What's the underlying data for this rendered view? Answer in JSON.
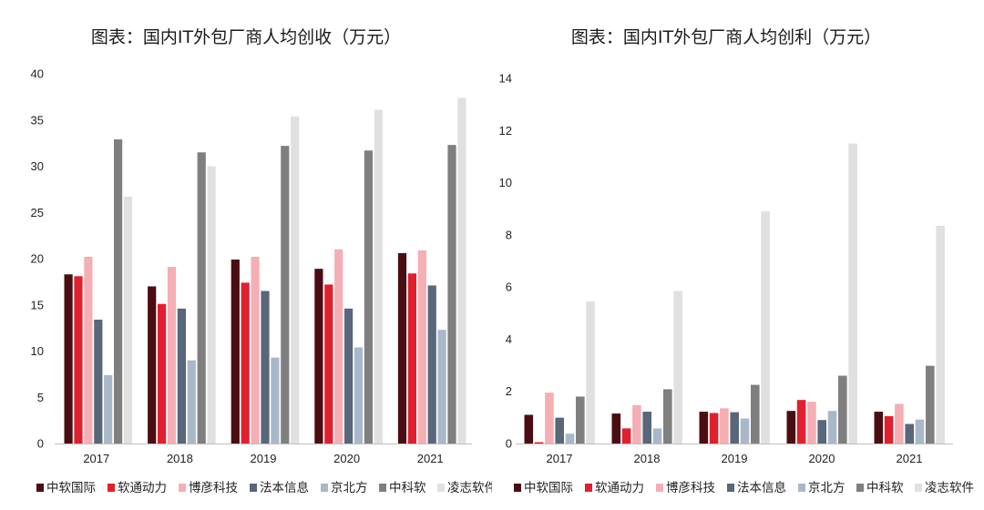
{
  "chart_data": [
    {
      "type": "bar",
      "title": "图表：国内IT外包厂商人均创收（万元）",
      "categories": [
        "2017",
        "2018",
        "2019",
        "2020",
        "2021"
      ],
      "ylim": [
        0,
        40
      ],
      "yticks": [
        "0",
        "5",
        "10",
        "15",
        "20",
        "25",
        "30",
        "35",
        "40"
      ],
      "grid": false,
      "legend_position": "bottom",
      "series": [
        {
          "name": "中软国际",
          "color": "#4a0d12",
          "values": [
            18.3,
            17.0,
            19.9,
            18.9,
            20.6
          ]
        },
        {
          "name": "软通动力",
          "color": "#e0202f",
          "values": [
            18.1,
            15.1,
            17.4,
            17.2,
            18.4
          ]
        },
        {
          "name": "博彦科技",
          "color": "#f4aeb4",
          "values": [
            20.2,
            19.1,
            20.2,
            21.0,
            20.9
          ]
        },
        {
          "name": "法本信息",
          "color": "#58677a",
          "values": [
            13.4,
            14.6,
            16.5,
            14.6,
            17.1
          ]
        },
        {
          "name": "京北方",
          "color": "#a9b8c9",
          "values": [
            7.4,
            9.0,
            9.3,
            10.4,
            12.3
          ]
        },
        {
          "name": "中科软",
          "color": "#7f7f7f",
          "values": [
            32.9,
            31.5,
            32.2,
            31.7,
            32.3
          ]
        },
        {
          "name": "凌志软件",
          "color": "#e0e0e0",
          "values": [
            26.7,
            30.0,
            35.4,
            36.1,
            37.4
          ]
        }
      ]
    },
    {
      "type": "bar",
      "title": "图表：国内IT外包厂商人均创利（万元）",
      "categories": [
        "2017",
        "2018",
        "2019",
        "2020",
        "2021"
      ],
      "ylim": [
        0,
        14
      ],
      "yticks": [
        "0",
        "2",
        "4",
        "6",
        "8",
        "10",
        "12",
        "14"
      ],
      "grid": false,
      "legend_position": "bottom",
      "series": [
        {
          "name": "中软国际",
          "color": "#4a0d12",
          "values": [
            1.1,
            1.15,
            1.22,
            1.25,
            1.22
          ]
        },
        {
          "name": "软通动力",
          "color": "#e0202f",
          "values": [
            0.05,
            0.58,
            1.17,
            1.67,
            1.05
          ]
        },
        {
          "name": "博彦科技",
          "color": "#f4aeb4",
          "values": [
            1.95,
            1.47,
            1.35,
            1.6,
            1.52
          ]
        },
        {
          "name": "法本信息",
          "color": "#58677a",
          "values": [
            0.99,
            1.22,
            1.2,
            0.9,
            0.75
          ]
        },
        {
          "name": "京北方",
          "color": "#a9b8c9",
          "values": [
            0.38,
            0.58,
            0.96,
            1.25,
            0.92
          ]
        },
        {
          "name": "中科软",
          "color": "#7f7f7f",
          "values": [
            1.8,
            2.08,
            2.25,
            2.6,
            2.98
          ]
        },
        {
          "name": "凌志软件",
          "color": "#e0e0e0",
          "values": [
            5.45,
            5.85,
            8.9,
            11.5,
            8.35
          ]
        }
      ]
    }
  ]
}
